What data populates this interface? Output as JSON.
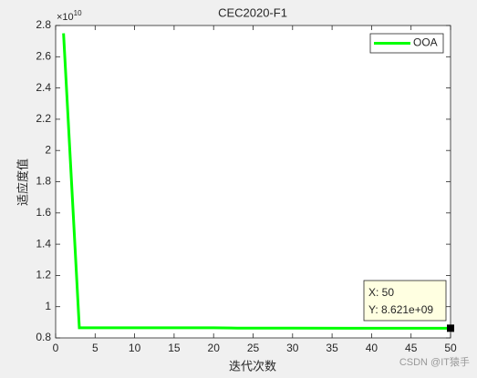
{
  "chart_data": {
    "type": "line",
    "title": "CEC2020-F1",
    "x_label": "迭代次数",
    "y_label": "适应度值",
    "y_multiplier": {
      "base": "×10",
      "exponent": "10"
    },
    "x": [
      1,
      2,
      3,
      10,
      20,
      23,
      30,
      40,
      50
    ],
    "series": [
      {
        "name": "OOA",
        "color": "#00ff00",
        "values": [
          2.75,
          1.81,
          0.865,
          0.865,
          0.865,
          0.863,
          0.8625,
          0.8621,
          0.8621
        ]
      }
    ],
    "xlim": [
      0,
      50
    ],
    "xticks": [
      0,
      5,
      10,
      15,
      20,
      25,
      30,
      35,
      40,
      45,
      50
    ],
    "ylim": [
      0.8,
      2.8
    ],
    "yticks": [
      0.8,
      1,
      1.2,
      1.4,
      1.6,
      1.8,
      2,
      2.2,
      2.4,
      2.6,
      2.8
    ],
    "legend": "top-right",
    "datatip": {
      "x": 50,
      "y": 0.8621,
      "x_text": "X: 50",
      "y_text": "Y: 8.621e+09"
    },
    "watermark": "CSDN @IT猿手"
  }
}
